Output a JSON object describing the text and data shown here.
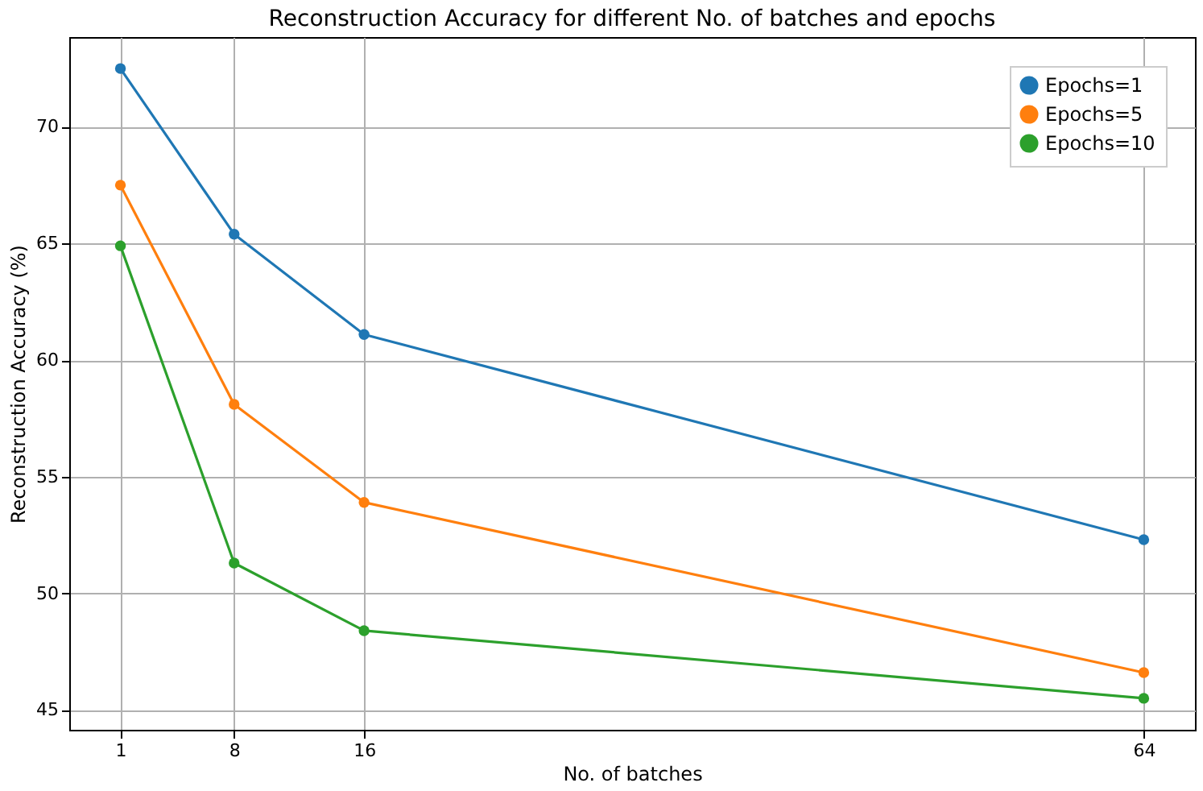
{
  "chart_data": {
    "type": "line",
    "title": "Reconstruction Accuracy for different No. of batches and epochs",
    "xlabel": "No. of batches",
    "ylabel": "Reconstruction Accuracy (%)",
    "x": [
      1,
      8,
      16,
      64
    ],
    "series": [
      {
        "name": "Epochs=1",
        "color": "#1f77b4",
        "values": [
          72.5,
          65.4,
          61.1,
          52.3
        ]
      },
      {
        "name": "Epochs=5",
        "color": "#ff7f0e",
        "values": [
          67.5,
          58.1,
          53.9,
          46.6
        ]
      },
      {
        "name": "Epochs=10",
        "color": "#2ca02c",
        "values": [
          64.9,
          51.3,
          48.4,
          45.5
        ]
      }
    ],
    "xlim": [
      -2.15,
      67.15
    ],
    "xticks": [
      1,
      8,
      16,
      64
    ],
    "ylim": [
      44.15,
      73.85
    ],
    "yticks": [
      45,
      50,
      55,
      60,
      65,
      70
    ],
    "grid": true,
    "legend": "top right",
    "marker": "circle",
    "line_style": "solid"
  }
}
